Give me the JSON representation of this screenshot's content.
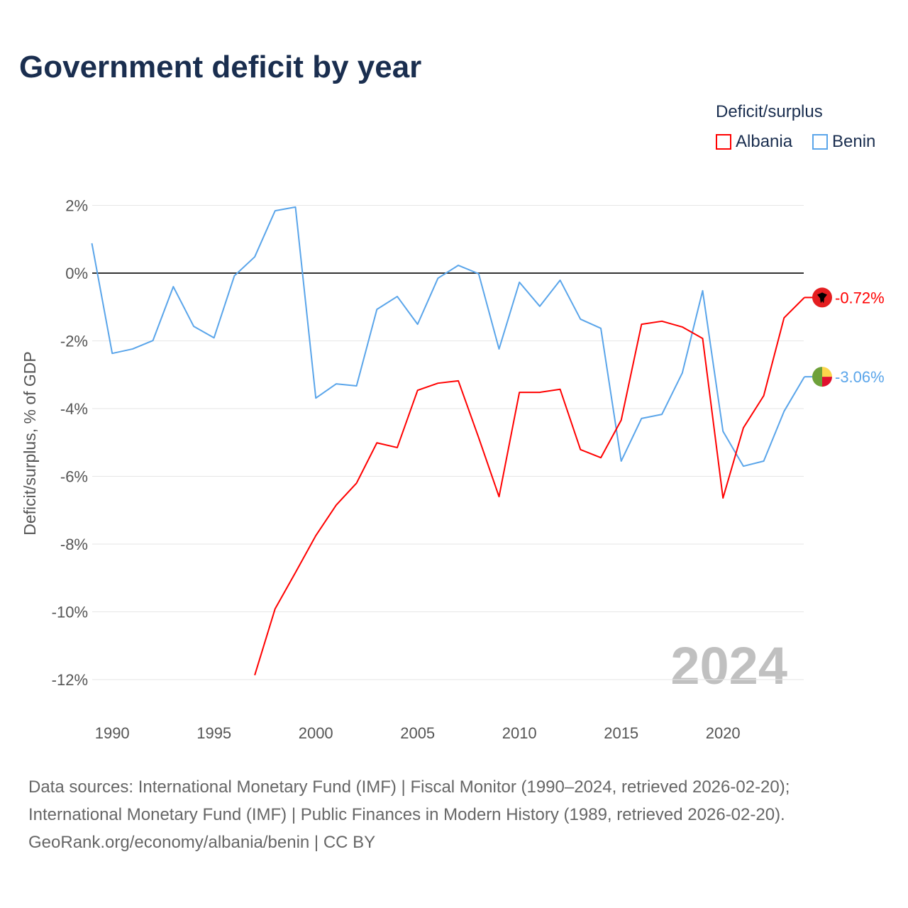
{
  "title": "Government deficit by year",
  "legend": {
    "title": "Deficit/surplus",
    "items": [
      {
        "label": "Albania",
        "color": "#ff0000"
      },
      {
        "label": "Benin",
        "color": "#5aa5ea"
      }
    ]
  },
  "chart_data": {
    "type": "line",
    "title": "Government deficit by year",
    "xlabel": "",
    "ylabel": "Deficit/surplus, % of GDP",
    "xlim": [
      1989,
      2024
    ],
    "ylim": [
      -13,
      2.5
    ],
    "x_ticks": [
      1990,
      1995,
      2000,
      2005,
      2010,
      2015,
      2020
    ],
    "y_ticks": [
      2,
      0,
      -2,
      -4,
      -6,
      -8,
      -10,
      -12
    ],
    "y_tick_labels": [
      "2%",
      "0%",
      "-2%",
      "-4%",
      "-6%",
      "-8%",
      "-10%",
      "-12%"
    ],
    "watermark_year": "2024",
    "series": [
      {
        "name": "Albania",
        "color": "#ff0000",
        "end_label": "-0.72%",
        "x": [
          1997,
          1998,
          1999,
          2000,
          2001,
          2002,
          2003,
          2004,
          2005,
          2006,
          2007,
          2008,
          2009,
          2010,
          2011,
          2012,
          2013,
          2014,
          2015,
          2016,
          2017,
          2018,
          2019,
          2020,
          2021,
          2022,
          2023,
          2024
        ],
        "values": [
          -11.87,
          -9.91,
          -8.84,
          -7.75,
          -6.85,
          -6.2,
          -5.01,
          -5.15,
          -3.46,
          -3.25,
          -3.18,
          -4.86,
          -6.6,
          -3.52,
          -3.52,
          -3.43,
          -5.21,
          -5.45,
          -4.34,
          -1.51,
          -1.42,
          -1.59,
          -1.93,
          -6.64,
          -4.57,
          -3.62,
          -1.32,
          -0.72
        ]
      },
      {
        "name": "Benin",
        "color": "#5aa5ea",
        "end_label": "-3.06%",
        "x": [
          1989,
          1990,
          1991,
          1992,
          1993,
          1994,
          1995,
          1996,
          1997,
          1998,
          1999,
          2000,
          2001,
          2002,
          2003,
          2004,
          2005,
          2006,
          2007,
          2008,
          2009,
          2010,
          2011,
          2012,
          2013,
          2014,
          2015,
          2016,
          2017,
          2018,
          2019,
          2020,
          2021,
          2022,
          2023,
          2024
        ],
        "values": [
          0.88,
          -2.37,
          -2.24,
          -1.99,
          -0.4,
          -1.57,
          -1.91,
          -0.08,
          0.48,
          1.84,
          1.95,
          -3.69,
          -3.27,
          -3.33,
          -1.07,
          -0.69,
          -1.51,
          -0.15,
          0.23,
          -0.02,
          -2.24,
          -0.27,
          -0.98,
          -0.21,
          -1.36,
          -1.63,
          -5.55,
          -4.29,
          -4.17,
          -2.95,
          -0.52,
          -4.67,
          -5.7,
          -5.55,
          -4.08,
          -3.06
        ]
      }
    ]
  },
  "footer": {
    "line1": "Data sources: International Monetary Fund (IMF) | Fiscal Monitor (1990–2024, retrieved 2026-02-20);",
    "line2": "International Monetary Fund (IMF) | Public Finances in Modern History (1989, retrieved 2026-02-20).",
    "line3": "GeoRank.org/economy/albania/benin | CC BY"
  }
}
